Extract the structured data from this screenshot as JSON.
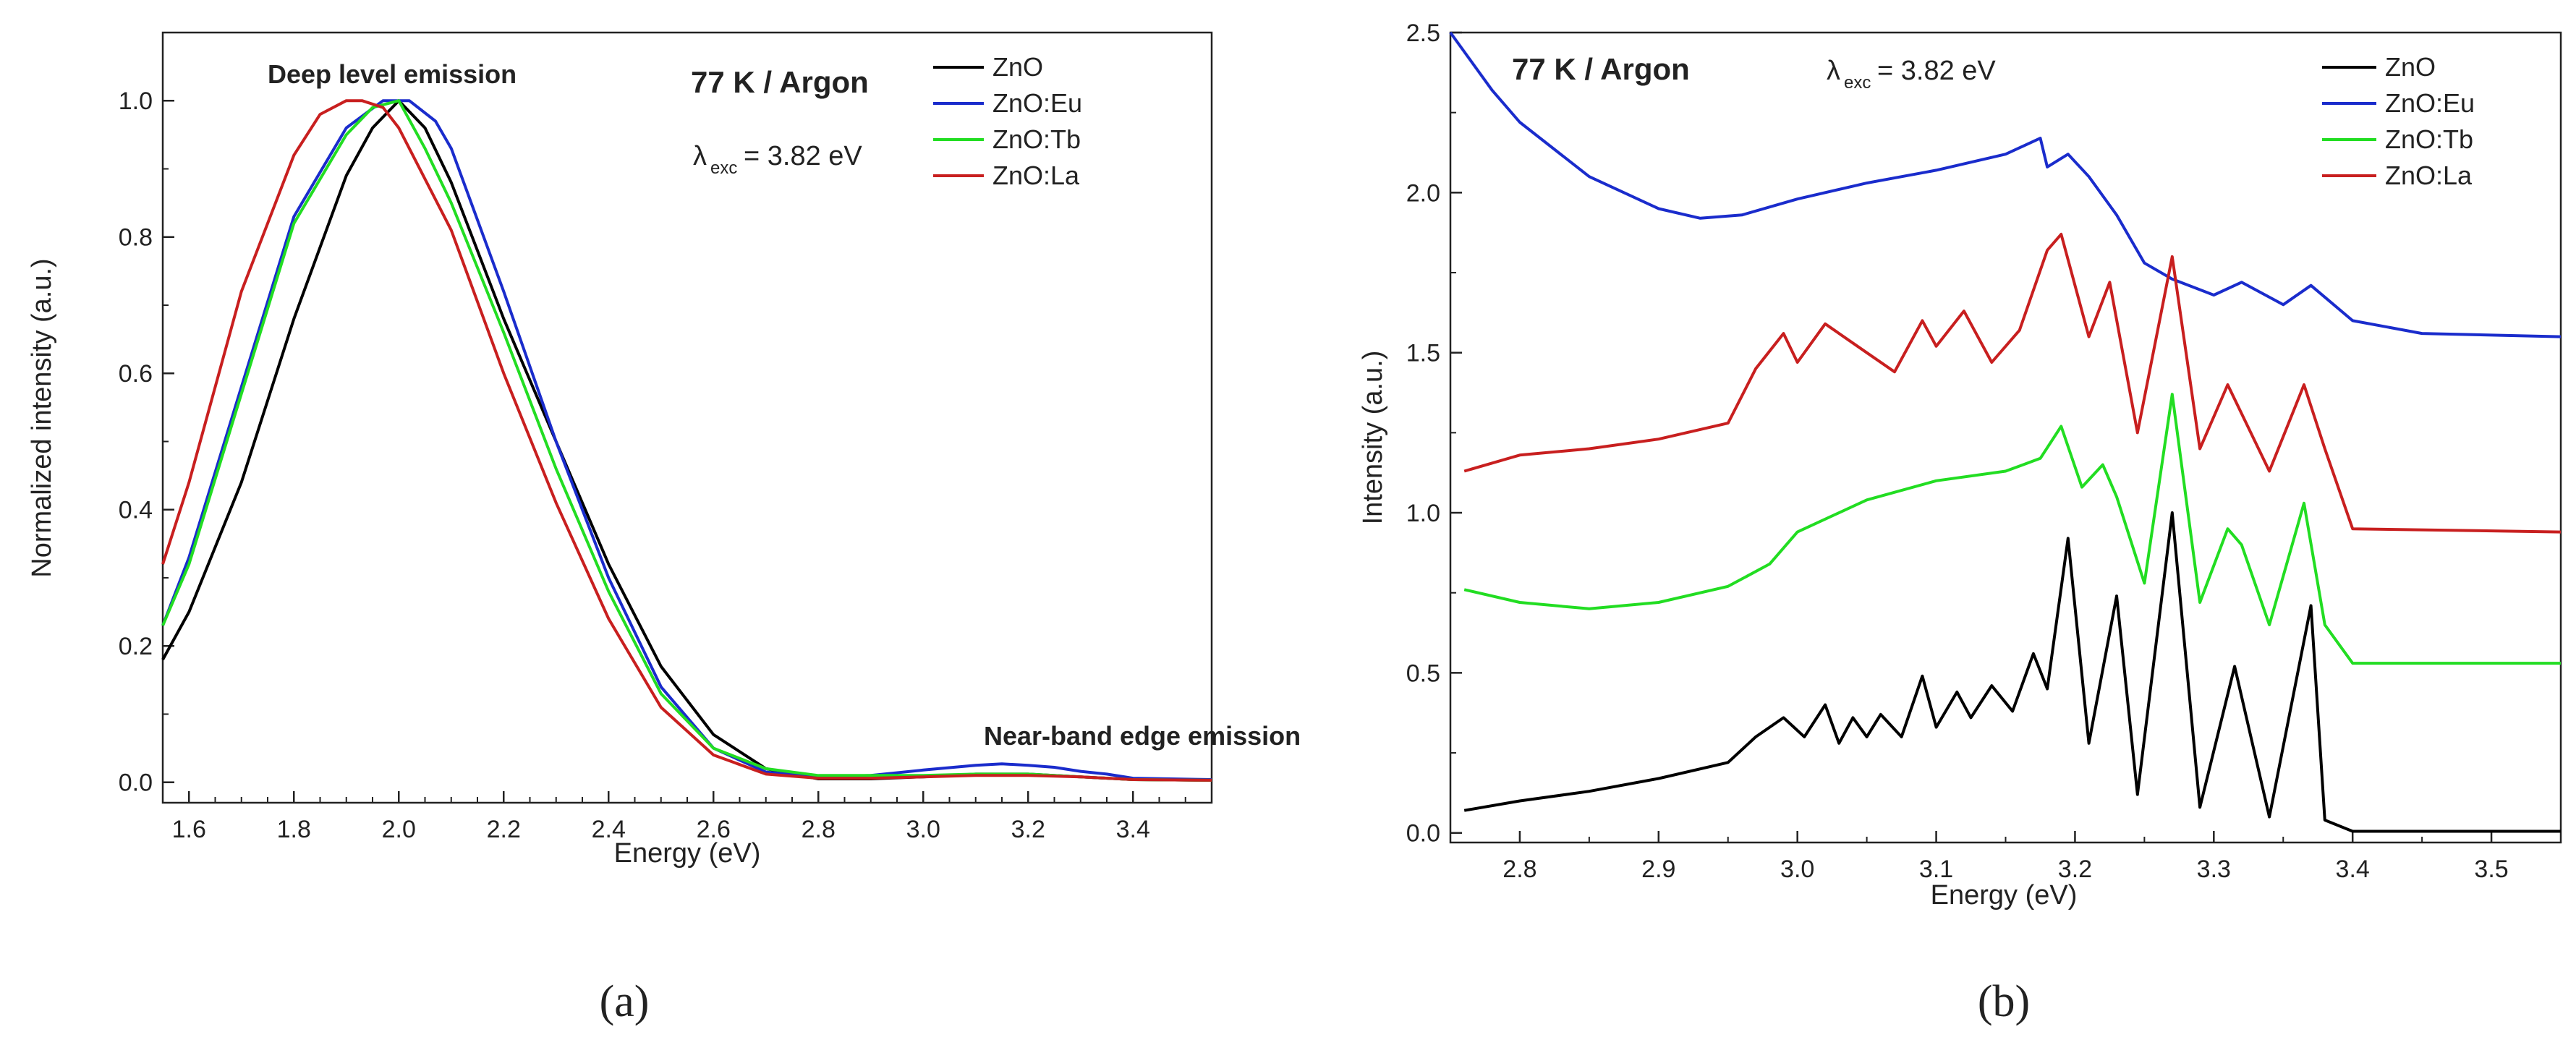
{
  "chart_data": [
    {
      "type": "line",
      "panel_label": "(a)",
      "xlabel": "Energy (eV)",
      "ylabel": "Normalized intensity (a.u.)",
      "xlim": [
        1.55,
        3.55
      ],
      "ylim": [
        -0.03,
        1.1
      ],
      "xticks": [
        "1.6",
        "1.8",
        "2.0",
        "2.2",
        "2.4",
        "2.6",
        "2.8",
        "3.0",
        "3.2",
        "3.4"
      ],
      "yticks": [
        "0.0",
        "0.2",
        "0.4",
        "0.6",
        "0.8",
        "1.0"
      ],
      "annotations": {
        "deep_level": "Deep level emission",
        "near_band": "Near-band edge emission",
        "condition": "77 K / Argon",
        "lambda": "λ",
        "lambda_sub": "exc",
        "lambda_value": "= 3.82 eV"
      },
      "legend_position": "top-right",
      "series": [
        {
          "name": "ZnO",
          "color": "#000000",
          "x": [
            1.55,
            1.6,
            1.7,
            1.8,
            1.9,
            1.95,
            2.0,
            2.05,
            2.1,
            2.2,
            2.3,
            2.4,
            2.5,
            2.6,
            2.7,
            2.8,
            2.9,
            3.0,
            3.1,
            3.2,
            3.3,
            3.4,
            3.55
          ],
          "y": [
            0.18,
            0.25,
            0.44,
            0.68,
            0.89,
            0.96,
            1.0,
            0.96,
            0.88,
            0.68,
            0.5,
            0.32,
            0.17,
            0.07,
            0.02,
            0.005,
            0.005,
            0.008,
            0.012,
            0.012,
            0.008,
            0.004,
            0.003
          ]
        },
        {
          "name": "ZnO:Eu",
          "color": "#1a2ccc",
          "x": [
            1.55,
            1.6,
            1.7,
            1.8,
            1.9,
            1.97,
            2.02,
            2.07,
            2.1,
            2.2,
            2.3,
            2.4,
            2.5,
            2.6,
            2.7,
            2.8,
            2.9,
            3.0,
            3.1,
            3.15,
            3.2,
            3.25,
            3.3,
            3.35,
            3.4,
            3.55
          ],
          "y": [
            0.23,
            0.33,
            0.58,
            0.83,
            0.96,
            1.0,
            1.0,
            0.97,
            0.93,
            0.72,
            0.5,
            0.3,
            0.14,
            0.05,
            0.015,
            0.008,
            0.01,
            0.018,
            0.025,
            0.027,
            0.025,
            0.022,
            0.016,
            0.012,
            0.006,
            0.004
          ]
        },
        {
          "name": "ZnO:Tb",
          "color": "#22dd22",
          "x": [
            1.55,
            1.6,
            1.7,
            1.8,
            1.9,
            1.95,
            2.0,
            2.05,
            2.1,
            2.2,
            2.3,
            2.4,
            2.5,
            2.6,
            2.7,
            2.8,
            2.9,
            3.0,
            3.1,
            3.2,
            3.3,
            3.4,
            3.55
          ],
          "y": [
            0.23,
            0.32,
            0.57,
            0.82,
            0.95,
            0.99,
            1.0,
            0.93,
            0.85,
            0.66,
            0.46,
            0.28,
            0.13,
            0.05,
            0.02,
            0.01,
            0.01,
            0.01,
            0.012,
            0.012,
            0.008,
            0.004,
            0.003
          ]
        },
        {
          "name": "ZnO:La",
          "color": "#c81f1f",
          "x": [
            1.55,
            1.6,
            1.7,
            1.8,
            1.85,
            1.9,
            1.93,
            1.97,
            2.0,
            2.1,
            2.2,
            2.3,
            2.4,
            2.5,
            2.6,
            2.7,
            2.8,
            2.9,
            3.0,
            3.1,
            3.2,
            3.3,
            3.4,
            3.55
          ],
          "y": [
            0.32,
            0.44,
            0.72,
            0.92,
            0.98,
            1.0,
            1.0,
            0.99,
            0.96,
            0.81,
            0.6,
            0.41,
            0.24,
            0.11,
            0.04,
            0.012,
            0.006,
            0.006,
            0.008,
            0.01,
            0.01,
            0.008,
            0.004,
            0.003
          ]
        }
      ]
    },
    {
      "type": "line",
      "panel_label": "(b)",
      "xlabel": "Energy (eV)",
      "ylabel": "Intensity (a.u.)",
      "xlim": [
        2.75,
        3.55
      ],
      "ylim": [
        -0.03,
        2.5
      ],
      "xticks": [
        "2.8",
        "2.9",
        "3.0",
        "3.1",
        "3.2",
        "3.3",
        "3.4",
        "3.5"
      ],
      "yticks": [
        "0.0",
        "0.5",
        "1.0",
        "1.5",
        "2.0",
        "2.5"
      ],
      "annotations": {
        "condition": "77 K / Argon",
        "lambda": "λ",
        "lambda_sub": "exc",
        "lambda_value": "= 3.82 eV"
      },
      "legend_position": "top-right",
      "series": [
        {
          "name": "ZnO",
          "color": "#000000",
          "x": [
            2.76,
            2.8,
            2.85,
            2.9,
            2.95,
            2.97,
            2.99,
            3.005,
            3.02,
            3.03,
            3.04,
            3.05,
            3.06,
            3.075,
            3.09,
            3.1,
            3.115,
            3.125,
            3.14,
            3.155,
            3.17,
            3.18,
            3.195,
            3.21,
            3.23,
            3.245,
            3.27,
            3.29,
            3.315,
            3.34,
            3.37,
            3.38,
            3.4,
            3.55
          ],
          "y": [
            0.07,
            0.1,
            0.13,
            0.17,
            0.22,
            0.3,
            0.36,
            0.3,
            0.4,
            0.28,
            0.36,
            0.3,
            0.37,
            0.3,
            0.49,
            0.33,
            0.44,
            0.36,
            0.46,
            0.38,
            0.56,
            0.45,
            0.92,
            0.28,
            0.74,
            0.12,
            1.0,
            0.08,
            0.52,
            0.05,
            0.71,
            0.04,
            0.005,
            0.005
          ]
        },
        {
          "name": "ZnO:Eu",
          "color": "#1a2ccc",
          "x": [
            2.75,
            2.78,
            2.8,
            2.85,
            2.9,
            2.93,
            2.96,
            3.0,
            3.05,
            3.1,
            3.15,
            3.175,
            3.18,
            3.195,
            3.21,
            3.23,
            3.25,
            3.27,
            3.3,
            3.32,
            3.35,
            3.37,
            3.4,
            3.45,
            3.55
          ],
          "y": [
            2.5,
            2.32,
            2.22,
            2.05,
            1.95,
            1.92,
            1.93,
            1.98,
            2.03,
            2.07,
            2.12,
            2.17,
            2.08,
            2.12,
            2.05,
            1.93,
            1.78,
            1.73,
            1.68,
            1.72,
            1.65,
            1.71,
            1.6,
            1.56,
            1.55
          ]
        },
        {
          "name": "ZnO:Tb",
          "color": "#22dd22",
          "x": [
            2.76,
            2.8,
            2.85,
            2.9,
            2.95,
            2.98,
            3.0,
            3.05,
            3.1,
            3.15,
            3.175,
            3.19,
            3.205,
            3.22,
            3.23,
            3.25,
            3.27,
            3.29,
            3.31,
            3.32,
            3.34,
            3.365,
            3.38,
            3.4,
            3.55
          ],
          "y": [
            0.76,
            0.72,
            0.7,
            0.72,
            0.77,
            0.84,
            0.94,
            1.04,
            1.1,
            1.13,
            1.17,
            1.27,
            1.08,
            1.15,
            1.05,
            0.78,
            1.37,
            0.72,
            0.95,
            0.9,
            0.65,
            1.03,
            0.65,
            0.53,
            0.53
          ]
        },
        {
          "name": "ZnO:La",
          "color": "#c81f1f",
          "x": [
            2.76,
            2.8,
            2.85,
            2.9,
            2.95,
            2.97,
            2.99,
            3.0,
            3.02,
            3.05,
            3.07,
            3.09,
            3.1,
            3.12,
            3.14,
            3.16,
            3.18,
            3.19,
            3.21,
            3.225,
            3.245,
            3.27,
            3.29,
            3.31,
            3.34,
            3.365,
            3.38,
            3.4,
            3.55
          ],
          "y": [
            1.13,
            1.18,
            1.2,
            1.23,
            1.28,
            1.45,
            1.56,
            1.47,
            1.59,
            1.5,
            1.44,
            1.6,
            1.52,
            1.63,
            1.47,
            1.57,
            1.82,
            1.87,
            1.55,
            1.72,
            1.25,
            1.8,
            1.2,
            1.4,
            1.13,
            1.4,
            1.2,
            0.95,
            0.94
          ]
        }
      ]
    }
  ]
}
